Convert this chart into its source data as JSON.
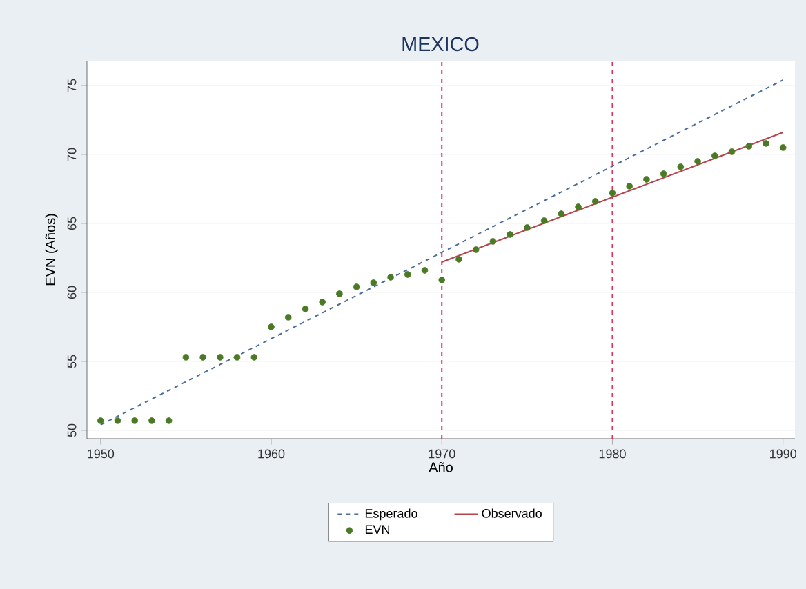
{
  "chart_data": {
    "type": "scatter",
    "title": "MEXICO",
    "xlabel": "Año",
    "ylabel": "EVN (Años)",
    "xlim": [
      1949.2,
      1990.7
    ],
    "ylim": [
      49.4,
      76.8
    ],
    "xticks": [
      1950,
      1960,
      1970,
      1980,
      1990
    ],
    "yticks": [
      50,
      55,
      60,
      65,
      70,
      75
    ],
    "grid": "y",
    "legend": "bottom",
    "ref_lines": [
      {
        "axis": "x",
        "value": 1970,
        "color": "#e0305a",
        "line_style": "dashed"
      },
      {
        "axis": "x",
        "value": 1980,
        "color": "#e0305a",
        "line_style": "dashed"
      }
    ],
    "series": [
      {
        "name": "Esperado",
        "type": "line",
        "color": "#4a6d9a",
        "line_style": "dashed",
        "marker": "none",
        "x": [
          1950,
          1990
        ],
        "values": [
          50.4,
          75.4
        ]
      },
      {
        "name": "Observado",
        "type": "line",
        "color": "#b5444a",
        "line_style": "solid",
        "marker": "none",
        "x": [
          1970,
          1990
        ],
        "values": [
          62.2,
          71.6
        ]
      },
      {
        "name": "EVN",
        "color": "#4a7a24",
        "marker": "circle",
        "x": [
          1950,
          1951,
          1952,
          1953,
          1954,
          1955,
          1956,
          1957,
          1958,
          1959,
          1960,
          1961,
          1962,
          1963,
          1964,
          1965,
          1966,
          1967,
          1968,
          1969,
          1970,
          1971,
          1972,
          1973,
          1974,
          1975,
          1976,
          1977,
          1978,
          1979,
          1980,
          1981,
          1982,
          1983,
          1984,
          1985,
          1986,
          1987,
          1988,
          1989,
          1990
        ],
        "values": [
          50.7,
          50.7,
          50.7,
          50.7,
          50.7,
          55.3,
          55.3,
          55.3,
          55.3,
          55.3,
          57.5,
          58.2,
          58.8,
          59.3,
          59.9,
          60.4,
          60.7,
          61.1,
          61.3,
          61.6,
          60.9,
          62.4,
          63.1,
          63.7,
          64.2,
          64.7,
          65.2,
          65.7,
          66.2,
          66.6,
          67.2,
          67.7,
          68.2,
          68.6,
          69.1,
          69.5,
          69.9,
          70.2,
          70.6,
          70.8,
          70.5
        ]
      }
    ]
  }
}
